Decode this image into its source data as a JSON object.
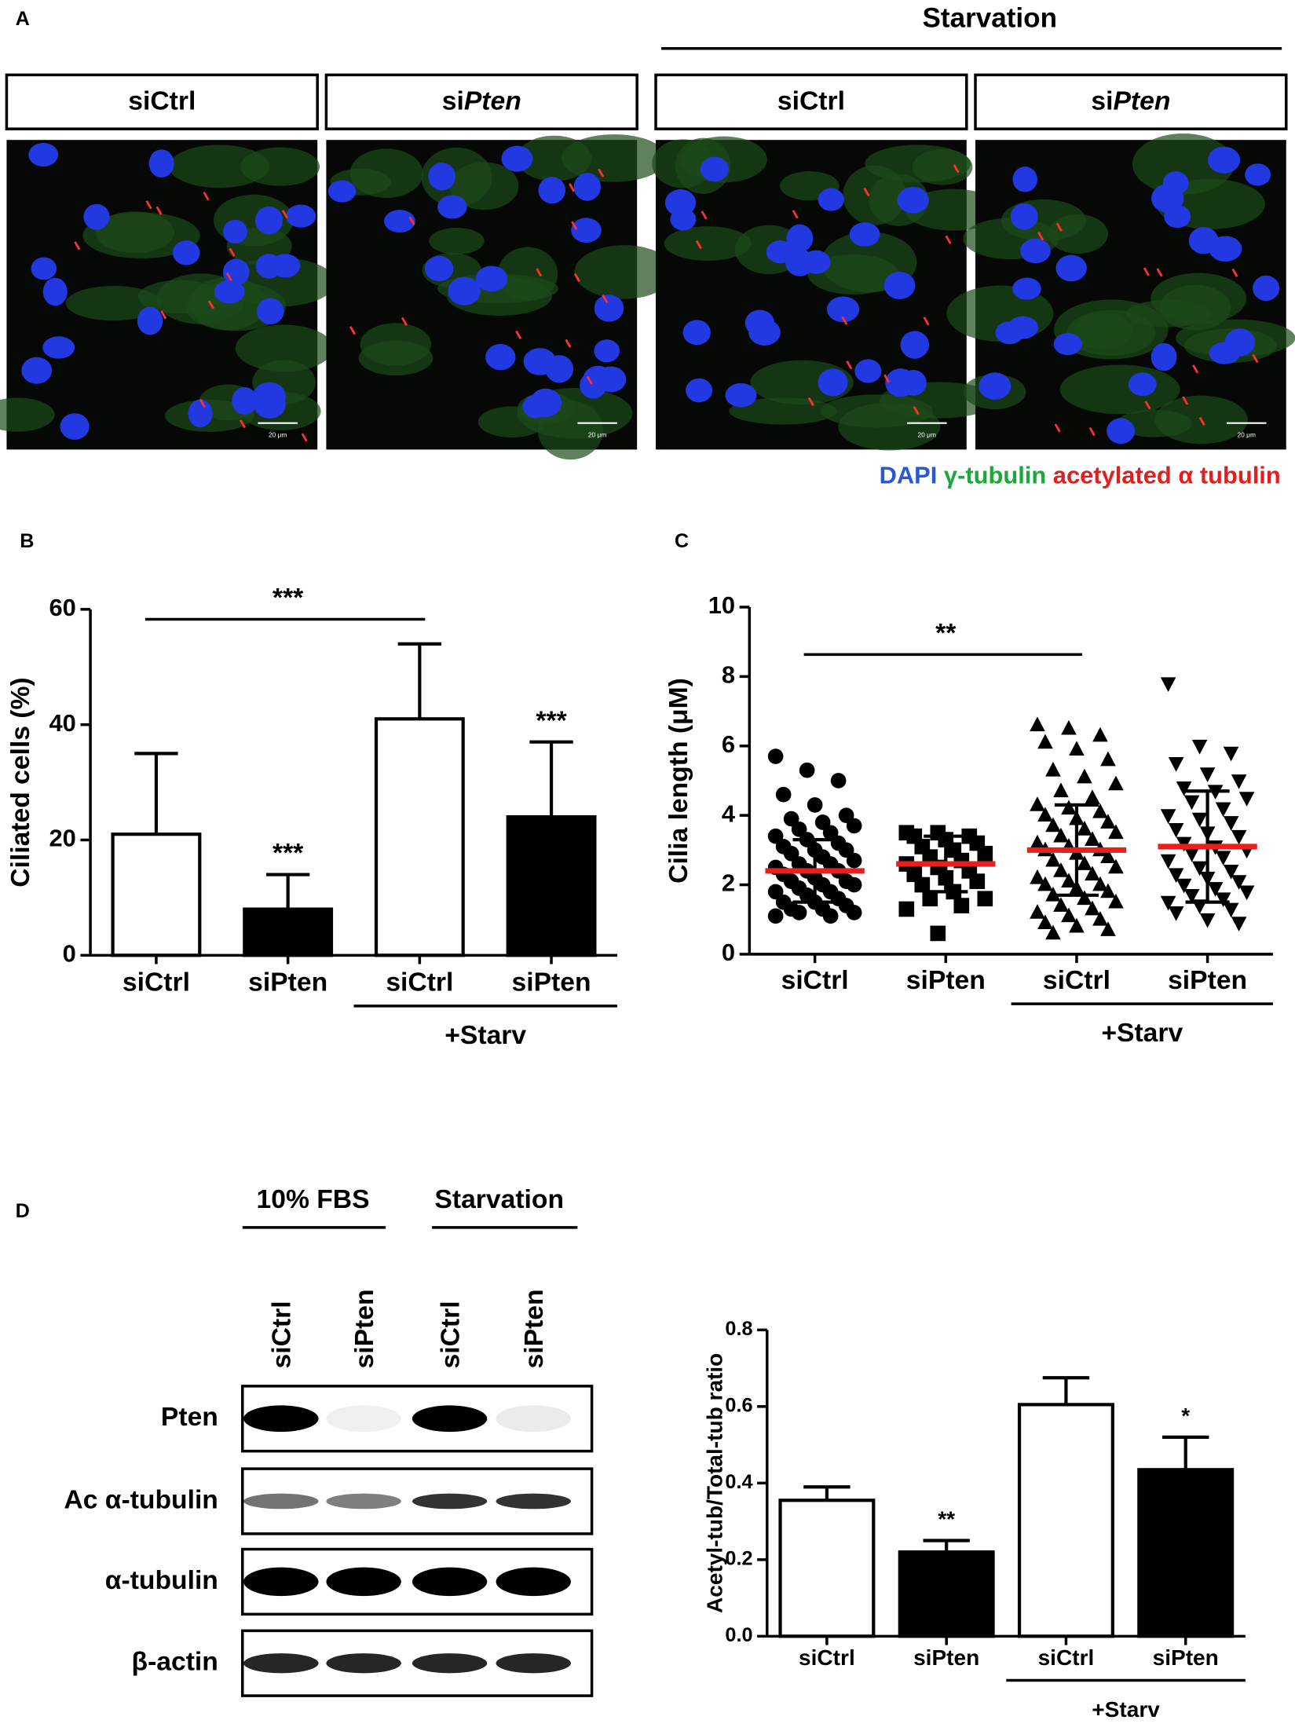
{
  "panel_a": {
    "label": "A",
    "group": "Starvation",
    "headers": [
      {
        "plain": "siCtrl"
      },
      {
        "plain": "si",
        "italic": "Pten"
      },
      {
        "plain": "siCtrl"
      },
      {
        "plain": "si",
        "italic": "Pten"
      }
    ],
    "scale_bar": "20 μm",
    "legend": [
      "DAPI",
      "γ-tubulin",
      "acetylated α tubulin"
    ]
  },
  "chart_data": [
    {
      "type": "bar",
      "label": "B",
      "y_label": "Ciliated cells (%)",
      "categories": [
        "siCtrl",
        "siPten",
        "siCtrl",
        "siPten"
      ],
      "values": [
        21,
        8,
        41,
        24
      ],
      "errors": [
        14,
        6,
        13,
        13
      ],
      "colors": [
        "#ffffff",
        "#000000",
        "#ffffff",
        "#000000"
      ],
      "ylim": [
        0,
        60
      ],
      "yticks": [
        0,
        20,
        40,
        60
      ],
      "group_label": "+Starv",
      "annotations": [
        "***",
        "***",
        "***"
      ]
    },
    {
      "type": "dotplot",
      "label": "C",
      "y_label": "Cilia length (μM)",
      "categories": [
        "siCtrl",
        "siPten",
        "siCtrl",
        "siPten"
      ],
      "color": "#000000",
      "mean_color": "#e8201c",
      "groups": [
        {
          "marker": "circle",
          "mean": 2.4,
          "sd": 0.9,
          "values": [
            5.7,
            5.3,
            5.0,
            4.6,
            4.3,
            4.0,
            3.9,
            3.8,
            3.7,
            3.6,
            3.5,
            3.4,
            3.3,
            3.2,
            3.1,
            3.0,
            3.0,
            2.9,
            2.8,
            2.7,
            2.6,
            2.6,
            2.5,
            2.4,
            2.4,
            2.3,
            2.2,
            2.1,
            2.1,
            2.0,
            2.0,
            1.9,
            1.8,
            1.8,
            1.7,
            1.6,
            1.5,
            1.5,
            1.4,
            1.3,
            1.3,
            1.2,
            1.2,
            1.1,
            1.1
          ]
        },
        {
          "marker": "square",
          "mean": 2.6,
          "sd": 0.8,
          "values": [
            3.5,
            3.5,
            3.4,
            3.4,
            3.3,
            3.2,
            3.1,
            3.0,
            2.9,
            2.8,
            2.7,
            2.6,
            2.5,
            2.4,
            2.3,
            2.2,
            2.1,
            2.0,
            1.8,
            1.6,
            1.6,
            1.4,
            1.3,
            0.6
          ]
        },
        {
          "marker": "triangle-up",
          "mean": 3.0,
          "sd": 1.3,
          "values": [
            6.6,
            6.5,
            6.3,
            6.1,
            5.9,
            5.6,
            5.3,
            5.1,
            4.9,
            4.7,
            4.5,
            4.3,
            4.2,
            4.1,
            4.0,
            3.9,
            3.8,
            3.7,
            3.6,
            3.5,
            3.4,
            3.3,
            3.2,
            3.1,
            3.0,
            3.0,
            2.9,
            2.8,
            2.7,
            2.6,
            2.5,
            2.4,
            2.3,
            2.2,
            2.1,
            2.0,
            2.0,
            1.9,
            1.8,
            1.7,
            1.6,
            1.5,
            1.4,
            1.3,
            1.2,
            1.1,
            1.0,
            0.9,
            0.8,
            0.7,
            0.6
          ]
        },
        {
          "marker": "triangle-down",
          "mean": 3.1,
          "sd": 1.6,
          "values": [
            7.8,
            6.0,
            5.8,
            5.5,
            5.2,
            5.0,
            4.8,
            4.7,
            4.5,
            4.4,
            4.2,
            4.0,
            3.9,
            3.8,
            3.6,
            3.5,
            3.4,
            3.2,
            3.1,
            3.0,
            2.9,
            2.8,
            2.7,
            2.5,
            2.4,
            2.3,
            2.2,
            2.1,
            2.0,
            1.9,
            1.8,
            1.7,
            1.6,
            1.5,
            1.4,
            1.3,
            1.2,
            1.0,
            0.9
          ]
        }
      ],
      "ylim": [
        0,
        10
      ],
      "yticks": [
        0,
        2,
        4,
        6,
        8,
        10
      ],
      "group_label": "+Starv",
      "annotations": [
        "**"
      ]
    },
    {
      "type": "bar",
      "y_label": "Acetyl-tub/Total-tub ratio",
      "categories": [
        "siCtrl",
        "siPten",
        "siCtrl",
        "siPten"
      ],
      "values": [
        0.355,
        0.22,
        0.605,
        0.435
      ],
      "errors": [
        0.035,
        0.03,
        0.07,
        0.085
      ],
      "colors": [
        "#ffffff",
        "#000000",
        "#ffffff",
        "#000000"
      ],
      "ylim": [
        0,
        0.8
      ],
      "yticks": [
        {
          "value": 0,
          "label": "0.0"
        },
        0.2,
        0.4,
        0.6,
        0.8
      ],
      "group_label": "+Starv",
      "annotations": [
        "**",
        "*"
      ]
    }
  ],
  "panel_d_blot": {
    "label": "D",
    "groups": [
      "10% FBS",
      "Starvation"
    ],
    "lanes": [
      "siCtrl",
      "siPten",
      "siCtrl",
      "siPten"
    ],
    "rows": [
      "Pten",
      "Ac α-tubulin",
      "α-tubulin",
      "β-actin"
    ]
  }
}
